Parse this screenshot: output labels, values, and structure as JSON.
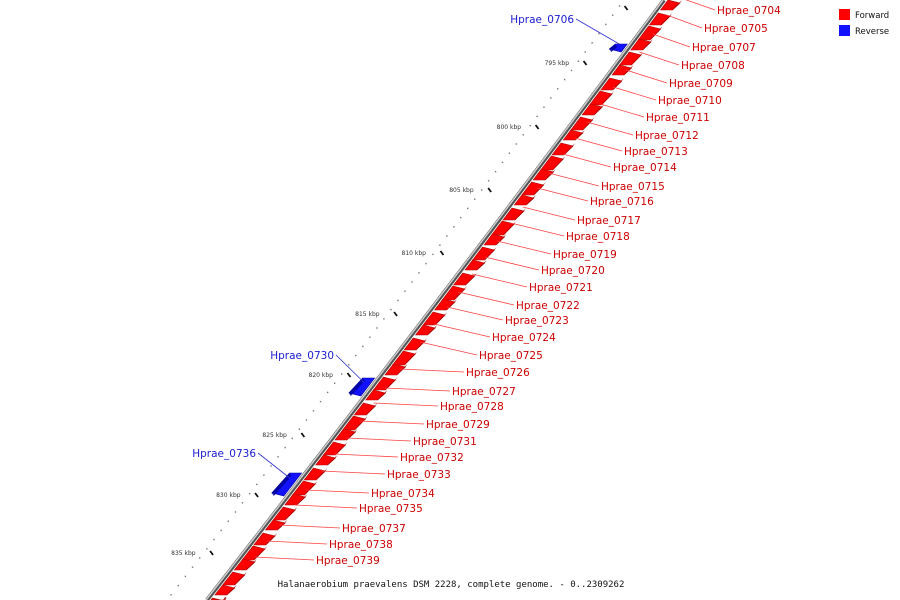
{
  "caption": "Halanaerobium praevalens DSM 2228, complete genome. - 0..2309262",
  "legend": [
    {
      "label": "Forward",
      "color": "#ff0000"
    },
    {
      "label": "Reverse",
      "color": "#1212ff"
    }
  ],
  "scale_labels": [
    "795 kbp",
    "800 kbp",
    "805 kbp",
    "810 kbp",
    "815 kbp",
    "820 kbp",
    "825 kbp",
    "830 kbp",
    "835 kbp"
  ],
  "forward_genes": [
    "Hprae_0704",
    "Hprae_0705",
    "Hprae_0707",
    "Hprae_0708",
    "Hprae_0709",
    "Hprae_0710",
    "Hprae_0711",
    "Hprae_0712",
    "Hprae_0713",
    "Hprae_0714",
    "Hprae_0715",
    "Hprae_0716",
    "Hprae_0717",
    "Hprae_0718",
    "Hprae_0719",
    "Hprae_0720",
    "Hprae_0721",
    "Hprae_0722",
    "Hprae_0723",
    "Hprae_0724",
    "Hprae_0725",
    "Hprae_0726",
    "Hprae_0727",
    "Hprae_0728",
    "Hprae_0729",
    "Hprae_0731",
    "Hprae_0732",
    "Hprae_0733",
    "Hprae_0734",
    "Hprae_0735",
    "Hprae_0737",
    "Hprae_0738",
    "Hprae_0739"
  ],
  "reverse_genes": [
    "Hprae_0706",
    "Hprae_0730",
    "Hprae_0736"
  ]
}
